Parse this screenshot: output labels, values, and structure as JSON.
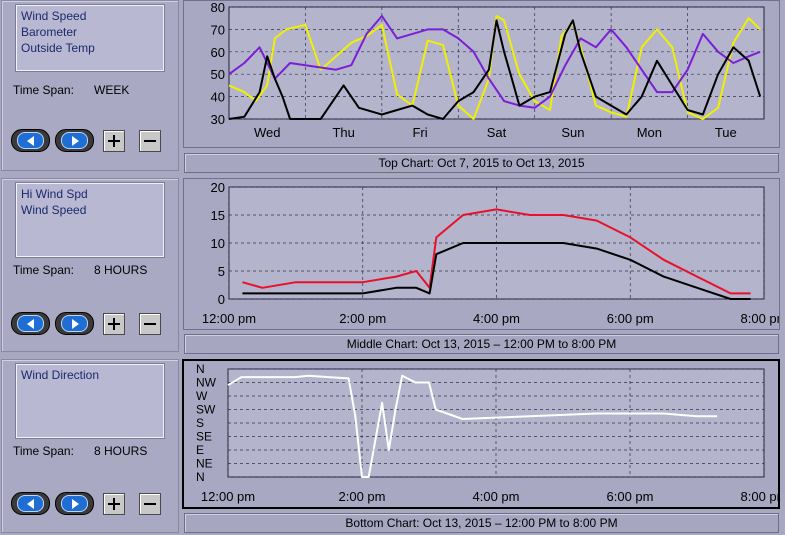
{
  "panels": [
    {
      "legend": [
        "Wind Speed",
        "Barometer",
        "Outside Temp"
      ],
      "time_span_label": "Time Span:",
      "time_span_value": "WEEK",
      "caption": "Top Chart:  Oct 7, 2015  to  Oct 13, 2015"
    },
    {
      "legend": [
        "Hi Wind Spd",
        "Wind Speed"
      ],
      "time_span_label": "Time Span:",
      "time_span_value": "8 HOURS",
      "caption": "Middle Chart:  Oct 13, 2015 – 12:00 PM  to  8:00 PM"
    },
    {
      "legend": [
        "Wind Direction"
      ],
      "time_span_label": "Time Span:",
      "time_span_value": "8 HOURS",
      "caption": "Bottom Chart:  Oct 13, 2015 – 12:00 PM  to  8:00 PM"
    }
  ],
  "controls": {
    "prev_icon": "left-arrow-icon",
    "next_icon": "right-arrow-icon",
    "zoom_in_icon": "plus-icon",
    "zoom_out_icon": "minus-icon"
  },
  "colors": {
    "wind_speed": "#000000",
    "barometer": "#7b1fd6",
    "outside_temp": "#f0f000",
    "hi_wind": "#e8102a",
    "wind_direction": "#ffffff"
  },
  "chart_data": [
    {
      "type": "line",
      "ylim": [
        30,
        80
      ],
      "yticks": [
        30,
        40,
        50,
        60,
        70,
        80
      ],
      "xlim": [
        0,
        7
      ],
      "x_tick_labels": [
        "Wed",
        "Thu",
        "Fri",
        "Sat",
        "Sun",
        "Mon",
        "Tue"
      ],
      "x_tick_positions": [
        0.5,
        1.5,
        2.5,
        3.5,
        4.5,
        5.5,
        6.5
      ],
      "grid": true,
      "series": [
        {
          "name": "Outside Temp",
          "color": "#f0f000",
          "x": [
            0,
            0.2,
            0.35,
            0.5,
            0.6,
            0.75,
            1.0,
            1.2,
            1.5,
            1.6,
            1.8,
            2.0,
            2.2,
            2.4,
            2.6,
            2.8,
            3.0,
            3.2,
            3.4,
            3.5,
            3.6,
            3.8,
            4.0,
            4.2,
            4.35,
            4.5,
            4.6,
            4.8,
            5.0,
            5.2,
            5.4,
            5.6,
            5.8,
            6.0,
            6.2,
            6.4,
            6.6,
            6.8,
            6.95
          ],
          "y": [
            45,
            42,
            38,
            45,
            66,
            70,
            72,
            52,
            61,
            64,
            67,
            72,
            41,
            36,
            65,
            63,
            36,
            30,
            48,
            76,
            74,
            50,
            38,
            34,
            67,
            73,
            62,
            36,
            33,
            31,
            62,
            70,
            62,
            33,
            30,
            35,
            64,
            75,
            70
          ]
        },
        {
          "name": "Barometer",
          "color": "#7b1fd6",
          "x": [
            0,
            0.2,
            0.4,
            0.6,
            0.8,
            1.0,
            1.2,
            1.4,
            1.6,
            1.8,
            2.0,
            2.2,
            2.4,
            2.6,
            2.8,
            3.0,
            3.2,
            3.4,
            3.6,
            3.8,
            4.0,
            4.2,
            4.4,
            4.6,
            4.8,
            5.0,
            5.2,
            5.4,
            5.6,
            5.8,
            6.0,
            6.2,
            6.4,
            6.6,
            6.8,
            6.95
          ],
          "y": [
            50,
            55,
            62,
            48,
            55,
            54,
            53,
            52,
            54,
            68,
            76,
            66,
            68,
            70,
            70,
            66,
            60,
            48,
            38,
            36,
            35,
            40,
            54,
            66,
            62,
            70,
            62,
            52,
            42,
            42,
            52,
            68,
            60,
            55,
            58,
            60
          ]
        },
        {
          "name": "Wind Speed",
          "color": "#000000",
          "x": [
            0,
            0.2,
            0.4,
            0.5,
            0.6,
            0.7,
            0.8,
            1.0,
            1.2,
            1.4,
            1.5,
            1.7,
            2.0,
            2.2,
            2.4,
            2.6,
            2.8,
            3.0,
            3.2,
            3.4,
            3.5,
            3.6,
            3.7,
            3.8,
            4.0,
            4.2,
            4.3,
            4.4,
            4.5,
            4.6,
            4.8,
            5.0,
            5.2,
            5.4,
            5.6,
            5.8,
            6.0,
            6.2,
            6.4,
            6.6,
            6.8,
            6.95
          ],
          "y": [
            30,
            31,
            42,
            58,
            48,
            40,
            30,
            30,
            30,
            40,
            45,
            35,
            32,
            34,
            36,
            32,
            30,
            38,
            42,
            52,
            74,
            60,
            48,
            36,
            40,
            42,
            55,
            68,
            74,
            60,
            40,
            36,
            32,
            40,
            56,
            45,
            34,
            32,
            50,
            62,
            56,
            40
          ]
        }
      ]
    },
    {
      "type": "line",
      "ylim": [
        0,
        20
      ],
      "yticks": [
        0,
        5,
        10,
        15,
        20
      ],
      "xlim": [
        12,
        20
      ],
      "x_tick_labels": [
        "12:00 pm",
        "2:00 pm",
        "4:00 pm",
        "6:00 pm",
        "8:00 pm"
      ],
      "x_tick_positions": [
        12,
        14,
        16,
        18,
        20
      ],
      "grid": true,
      "series": [
        {
          "name": "Hi Wind Spd",
          "color": "#e8102a",
          "x": [
            12.2,
            12.5,
            13.0,
            13.5,
            14.0,
            14.5,
            14.8,
            15.0,
            15.1,
            15.5,
            16.0,
            16.5,
            17.0,
            17.5,
            18.0,
            18.5,
            19.0,
            19.5,
            19.8
          ],
          "y": [
            3,
            2,
            3,
            3,
            3,
            4,
            5,
            2,
            11,
            15,
            16,
            15,
            15,
            14,
            11,
            7,
            4,
            1,
            1
          ]
        },
        {
          "name": "Wind Speed",
          "color": "#000000",
          "x": [
            12.2,
            12.5,
            13.0,
            13.5,
            14.0,
            14.5,
            14.8,
            15.0,
            15.1,
            15.5,
            16.0,
            16.5,
            17.0,
            17.5,
            18.0,
            18.5,
            19.0,
            19.5,
            19.8
          ],
          "y": [
            1,
            1,
            1,
            1,
            1,
            2,
            2,
            1,
            8,
            10,
            10,
            10,
            10,
            9,
            7,
            4,
            2,
            0,
            0
          ]
        }
      ]
    },
    {
      "type": "line",
      "xlim": [
        12,
        20
      ],
      "x_tick_labels": [
        "12:00 pm",
        "2:00 pm",
        "4:00 pm",
        "6:00 pm",
        "8:00 pm"
      ],
      "x_tick_positions": [
        12,
        14,
        16,
        18,
        20
      ],
      "y_categories": [
        "N",
        "NW",
        "W",
        "SW",
        "S",
        "SE",
        "E",
        "NE",
        "N"
      ],
      "grid": true,
      "series": [
        {
          "name": "Wind Direction",
          "color": "#ffffff",
          "x": [
            12.0,
            12.2,
            12.5,
            12.8,
            13.0,
            13.2,
            13.5,
            13.8,
            13.9,
            14.0,
            14.1,
            14.3,
            14.4,
            14.5,
            14.6,
            14.8,
            15.0,
            15.1,
            15.5,
            16.0,
            16.5,
            17.0,
            17.5,
            18.0,
            18.5,
            19.0,
            19.3
          ],
          "y": [
            1.2,
            0.6,
            0.6,
            0.6,
            0.6,
            0.5,
            0.6,
            0.7,
            3.5,
            8.0,
            8.0,
            2.5,
            6.0,
            3.0,
            0.5,
            1.0,
            1.0,
            3.0,
            3.7,
            3.6,
            3.5,
            3.4,
            3.3,
            3.3,
            3.3,
            3.5,
            3.5
          ]
        }
      ]
    }
  ]
}
